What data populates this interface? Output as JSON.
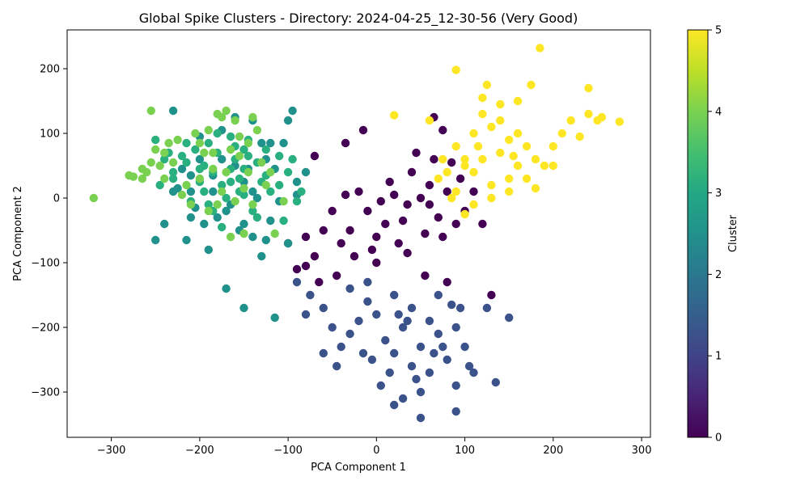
{
  "chart_data": {
    "type": "scatter",
    "title": "Global Spike Clusters - Directory: 2024-04-25_12-30-56 (Very Good)",
    "xlabel": "PCA Component 1",
    "ylabel": "PCA Component 2",
    "xlim": [
      -350,
      310
    ],
    "ylim": [
      -370,
      260
    ],
    "xticks": [
      -300,
      -200,
      -100,
      0,
      100,
      200,
      300
    ],
    "xtick_labels": [
      "−300",
      "−200",
      "−100",
      "0",
      "100",
      "200",
      "300"
    ],
    "yticks": [
      -300,
      -200,
      -100,
      0,
      100,
      200
    ],
    "ytick_labels": [
      "−300",
      "−200",
      "−100",
      "0",
      "100",
      "200"
    ],
    "grid": false,
    "colormap": "viridis",
    "colorbar": {
      "label": "Cluster",
      "range": [
        0,
        5
      ],
      "ticks": [
        0,
        1,
        2,
        3,
        4,
        5
      ],
      "tick_labels": [
        "0",
        "1",
        "2",
        "3",
        "4",
        "5"
      ]
    },
    "cluster_colors": {
      "0": "#440154",
      "1": "#3b528b",
      "2": "#21918c",
      "3": "#2ab07f",
      "4": "#7ad151",
      "5": "#fde725"
    },
    "series": [
      {
        "cluster": 0,
        "points": [
          [
            20,
            5
          ],
          [
            35,
            -10
          ],
          [
            50,
            0
          ],
          [
            60,
            20
          ],
          [
            70,
            -30
          ],
          [
            80,
            10
          ],
          [
            40,
            40
          ],
          [
            10,
            -40
          ],
          [
            -10,
            -20
          ],
          [
            -30,
            -50
          ],
          [
            -20,
            10
          ],
          [
            0,
            -60
          ],
          [
            25,
            -70
          ],
          [
            55,
            -55
          ],
          [
            75,
            -60
          ],
          [
            90,
            -40
          ],
          [
            65,
            60
          ],
          [
            45,
            70
          ],
          [
            85,
            55
          ],
          [
            30,
            -35
          ],
          [
            -5,
            -80
          ],
          [
            -40,
            -70
          ],
          [
            -60,
            -50
          ],
          [
            -50,
            -20
          ],
          [
            -35,
            5
          ],
          [
            15,
            25
          ],
          [
            5,
            -5
          ],
          [
            60,
            -10
          ],
          [
            100,
            -20
          ],
          [
            95,
            30
          ],
          [
            -25,
            -90
          ],
          [
            -70,
            -90
          ],
          [
            -80,
            -60
          ],
          [
            -90,
            -110
          ],
          [
            -65,
            -130
          ],
          [
            -15,
            105
          ],
          [
            -35,
            85
          ],
          [
            -70,
            65
          ],
          [
            65,
            125
          ],
          [
            75,
            105
          ],
          [
            130,
            -150
          ],
          [
            80,
            -130
          ],
          [
            -100,
            -70
          ],
          [
            -80,
            -105
          ],
          [
            120,
            -40
          ],
          [
            110,
            10
          ],
          [
            -45,
            -120
          ],
          [
            0,
            -100
          ],
          [
            35,
            -85
          ],
          [
            55,
            -120
          ]
        ]
      },
      {
        "cluster": 1,
        "points": [
          [
            20,
            -150
          ],
          [
            40,
            -170
          ],
          [
            60,
            -190
          ],
          [
            30,
            -200
          ],
          [
            10,
            -220
          ],
          [
            50,
            -230
          ],
          [
            70,
            -210
          ],
          [
            80,
            -250
          ],
          [
            60,
            -270
          ],
          [
            40,
            -260
          ],
          [
            20,
            -240
          ],
          [
            0,
            -180
          ],
          [
            -10,
            -160
          ],
          [
            -20,
            -190
          ],
          [
            -30,
            -210
          ],
          [
            -40,
            -230
          ],
          [
            -50,
            -200
          ],
          [
            -60,
            -170
          ],
          [
            -30,
            -140
          ],
          [
            -10,
            -130
          ],
          [
            90,
            -200
          ],
          [
            100,
            -230
          ],
          [
            110,
            -270
          ],
          [
            90,
            -290
          ],
          [
            50,
            -300
          ],
          [
            30,
            -310
          ],
          [
            20,
            -320
          ],
          [
            50,
            -340
          ],
          [
            90,
            -330
          ],
          [
            135,
            -285
          ],
          [
            150,
            -185
          ],
          [
            125,
            -170
          ],
          [
            -80,
            -180
          ],
          [
            -90,
            -130
          ],
          [
            -75,
            -150
          ],
          [
            70,
            -150
          ],
          [
            85,
            -165
          ],
          [
            5,
            -290
          ],
          [
            -5,
            -250
          ],
          [
            -45,
            -260
          ],
          [
            -60,
            -240
          ],
          [
            15,
            -270
          ],
          [
            45,
            -280
          ],
          [
            65,
            -240
          ],
          [
            75,
            -230
          ],
          [
            35,
            -190
          ],
          [
            25,
            -180
          ],
          [
            -15,
            -240
          ],
          [
            95,
            -170
          ],
          [
            105,
            -260
          ]
        ]
      },
      {
        "cluster": 2,
        "points": [
          [
            -230,
            135
          ],
          [
            -230,
            10
          ],
          [
            -250,
            -65
          ],
          [
            -240,
            -40
          ],
          [
            -215,
            -65
          ],
          [
            -210,
            -30
          ],
          [
            -190,
            -80
          ],
          [
            -170,
            -140
          ],
          [
            -150,
            -170
          ],
          [
            -115,
            -185
          ],
          [
            -130,
            -90
          ],
          [
            -140,
            -60
          ],
          [
            -125,
            -65
          ],
          [
            -110,
            -5
          ],
          [
            -100,
            -70
          ],
          [
            -90,
            5
          ],
          [
            -95,
            135
          ],
          [
            -100,
            120
          ],
          [
            -105,
            85
          ],
          [
            -120,
            85
          ],
          [
            -130,
            85
          ],
          [
            -125,
            60
          ],
          [
            -140,
            120
          ],
          [
            -160,
            125
          ],
          [
            -175,
            105
          ],
          [
            -185,
            35
          ],
          [
            -200,
            60
          ],
          [
            -210,
            10
          ],
          [
            -220,
            45
          ],
          [
            -195,
            -40
          ],
          [
            -180,
            -30
          ],
          [
            -165,
            -10
          ],
          [
            -150,
            -40
          ],
          [
            -160,
            50
          ],
          [
            -145,
            45
          ],
          [
            -150,
            25
          ],
          [
            -140,
            10
          ],
          [
            -170,
            -20
          ],
          [
            -210,
            35
          ],
          [
            -225,
            15
          ],
          [
            -205,
            -15
          ],
          [
            -185,
            10
          ],
          [
            -155,
            -50
          ],
          [
            -175,
            60
          ],
          [
            -200,
            95
          ],
          [
            -115,
            45
          ],
          [
            -135,
            0
          ],
          [
            -120,
            -35
          ],
          [
            -90,
            25
          ],
          [
            -80,
            40
          ]
        ]
      },
      {
        "cluster": 3,
        "points": [
          [
            -250,
            90
          ],
          [
            -235,
            70
          ],
          [
            -215,
            85
          ],
          [
            -195,
            50
          ],
          [
            -180,
            70
          ],
          [
            -165,
            95
          ],
          [
            -150,
            75
          ],
          [
            -135,
            55
          ],
          [
            -155,
            30
          ],
          [
            -175,
            20
          ],
          [
            -195,
            10
          ],
          [
            -215,
            55
          ],
          [
            -230,
            40
          ],
          [
            -245,
            20
          ],
          [
            -205,
            75
          ],
          [
            -185,
            40
          ],
          [
            -165,
            45
          ],
          [
            -145,
            65
          ],
          [
            -125,
            35
          ],
          [
            -190,
            -10
          ],
          [
            -170,
            0
          ],
          [
            -150,
            5
          ],
          [
            -130,
            25
          ],
          [
            -160,
            80
          ],
          [
            -140,
            -20
          ],
          [
            -110,
            65
          ],
          [
            -100,
            40
          ],
          [
            -200,
            25
          ],
          [
            -220,
            65
          ],
          [
            -240,
            60
          ],
          [
            -175,
            -45
          ],
          [
            -155,
            10
          ],
          [
            -180,
            100
          ],
          [
            -160,
            60
          ],
          [
            -135,
            -30
          ],
          [
            -120,
            10
          ],
          [
            -95,
            60
          ],
          [
            -110,
            20
          ],
          [
            -145,
            90
          ],
          [
            -190,
            85
          ],
          [
            -210,
            -5
          ],
          [
            -230,
            30
          ],
          [
            -165,
            25
          ],
          [
            -150,
            45
          ],
          [
            -200,
            45
          ],
          [
            -185,
            -20
          ],
          [
            -125,
            75
          ],
          [
            -105,
            -35
          ],
          [
            -90,
            -5
          ],
          [
            -85,
            10
          ]
        ]
      },
      {
        "cluster": 4,
        "points": [
          [
            -320,
            0
          ],
          [
            -280,
            35
          ],
          [
            -275,
            33
          ],
          [
            -265,
            30
          ],
          [
            -260,
            40
          ],
          [
            -255,
            135
          ],
          [
            -250,
            75
          ],
          [
            -240,
            70
          ],
          [
            -225,
            90
          ],
          [
            -205,
            100
          ],
          [
            -190,
            105
          ],
          [
            -175,
            125
          ],
          [
            -180,
            130
          ],
          [
            -170,
            135
          ],
          [
            -160,
            120
          ],
          [
            -155,
            95
          ],
          [
            -145,
            85
          ],
          [
            -135,
            105
          ],
          [
            -140,
            125
          ],
          [
            -155,
            65
          ],
          [
            -170,
            40
          ],
          [
            -185,
            70
          ],
          [
            -200,
            85
          ],
          [
            -215,
            20
          ],
          [
            -230,
            55
          ],
          [
            -245,
            50
          ],
          [
            -210,
            -10
          ],
          [
            -190,
            -20
          ],
          [
            -175,
            10
          ],
          [
            -160,
            -5
          ],
          [
            -150,
            -55
          ],
          [
            -165,
            -60
          ],
          [
            -115,
            -55
          ],
          [
            -105,
            -5
          ],
          [
            -120,
            40
          ],
          [
            -130,
            55
          ],
          [
            -200,
            30
          ],
          [
            -185,
            45
          ],
          [
            -165,
            75
          ],
          [
            -150,
            15
          ],
          [
            -140,
            -10
          ],
          [
            -220,
            5
          ],
          [
            -240,
            30
          ],
          [
            -255,
            55
          ],
          [
            -265,
            45
          ],
          [
            -235,
            85
          ],
          [
            -195,
            70
          ],
          [
            -180,
            -10
          ],
          [
            -125,
            20
          ],
          [
            -145,
            40
          ]
        ]
      },
      {
        "cluster": 5,
        "points": [
          [
            120,
            60
          ],
          [
            140,
            70
          ],
          [
            160,
            50
          ],
          [
            150,
            30
          ],
          [
            130,
            20
          ],
          [
            110,
            40
          ],
          [
            100,
            60
          ],
          [
            90,
            80
          ],
          [
            110,
            100
          ],
          [
            130,
            110
          ],
          [
            150,
            90
          ],
          [
            170,
            80
          ],
          [
            180,
            60
          ],
          [
            160,
            100
          ],
          [
            140,
            120
          ],
          [
            120,
            130
          ],
          [
            100,
            50
          ],
          [
            80,
            40
          ],
          [
            70,
            30
          ],
          [
            90,
            10
          ],
          [
            110,
            -10
          ],
          [
            130,
            0
          ],
          [
            150,
            10
          ],
          [
            170,
            30
          ],
          [
            190,
            50
          ],
          [
            200,
            80
          ],
          [
            210,
            100
          ],
          [
            220,
            120
          ],
          [
            240,
            130
          ],
          [
            255,
            125
          ],
          [
            275,
            118
          ],
          [
            240,
            170
          ],
          [
            185,
            232
          ],
          [
            175,
            175
          ],
          [
            160,
            150
          ],
          [
            140,
            145
          ],
          [
            125,
            175
          ],
          [
            90,
            198
          ],
          [
            20,
            128
          ],
          [
            60,
            120
          ],
          [
            180,
            15
          ],
          [
            200,
            50
          ],
          [
            230,
            95
          ],
          [
            250,
            120
          ],
          [
            120,
            155
          ],
          [
            100,
            -25
          ],
          [
            85,
            0
          ],
          [
            75,
            60
          ],
          [
            115,
            80
          ],
          [
            155,
            65
          ]
        ]
      }
    ]
  }
}
